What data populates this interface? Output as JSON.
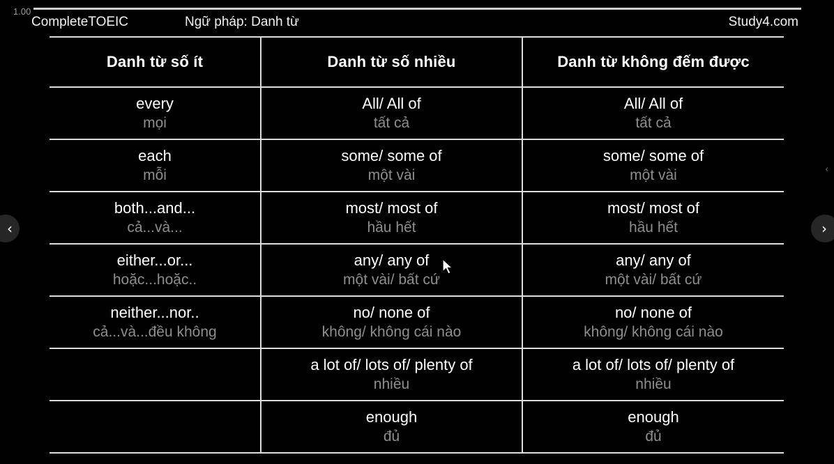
{
  "player": {
    "speed": "1.00",
    "prev_icon": "chevron-left-icon",
    "next_icon": "chevron-right-icon",
    "prev_glyph": "‹",
    "next_glyph": "›",
    "side_glyph": "‹"
  },
  "slide": {
    "course": "CompleteTOEIC",
    "topic": "Ngữ pháp: Danh từ",
    "brand": "Study4.com"
  },
  "table": {
    "headers": [
      "Danh từ số ít",
      "Danh từ số nhiều",
      "Danh từ không đếm được"
    ],
    "rows": [
      [
        {
          "term": "every",
          "meaning": "mọi"
        },
        {
          "term": "All/ All of",
          "meaning": "tất cả"
        },
        {
          "term": "All/ All of",
          "meaning": "tất cả"
        }
      ],
      [
        {
          "term": "each",
          "meaning": "mỗi"
        },
        {
          "term": "some/ some of",
          "meaning": "một vài"
        },
        {
          "term": "some/ some of",
          "meaning": "một vài"
        }
      ],
      [
        {
          "term": "both...and...",
          "meaning": "cả...và..."
        },
        {
          "term": "most/ most of",
          "meaning": "hầu hết"
        },
        {
          "term": "most/ most of",
          "meaning": "hầu hết"
        }
      ],
      [
        {
          "term": "either...or...",
          "meaning": "hoặc...hoặc.."
        },
        {
          "term": "any/ any of",
          "meaning": "một vài/ bất cứ"
        },
        {
          "term": "any/ any of",
          "meaning": "một vài/ bất cứ"
        }
      ],
      [
        {
          "term": "neither...nor..",
          "meaning": "cả...và...đều không"
        },
        {
          "term": "no/ none of",
          "meaning": "không/ không cái nào"
        },
        {
          "term": "no/ none of",
          "meaning": "không/ không cái nào"
        }
      ],
      [
        {
          "term": "",
          "meaning": ""
        },
        {
          "term": "a lot of/ lots of/ plenty of",
          "meaning": "nhiều"
        },
        {
          "term": "a lot of/ lots of/ plenty of",
          "meaning": "nhiều"
        }
      ],
      [
        {
          "term": "",
          "meaning": ""
        },
        {
          "term": "enough",
          "meaning": "đủ"
        },
        {
          "term": "enough",
          "meaning": "đủ"
        }
      ]
    ]
  },
  "colors": {
    "background": "#000000",
    "term_text": "#ffffff",
    "meaning_text": "#8e8e8e",
    "grid_line": "#dcdcdc"
  }
}
